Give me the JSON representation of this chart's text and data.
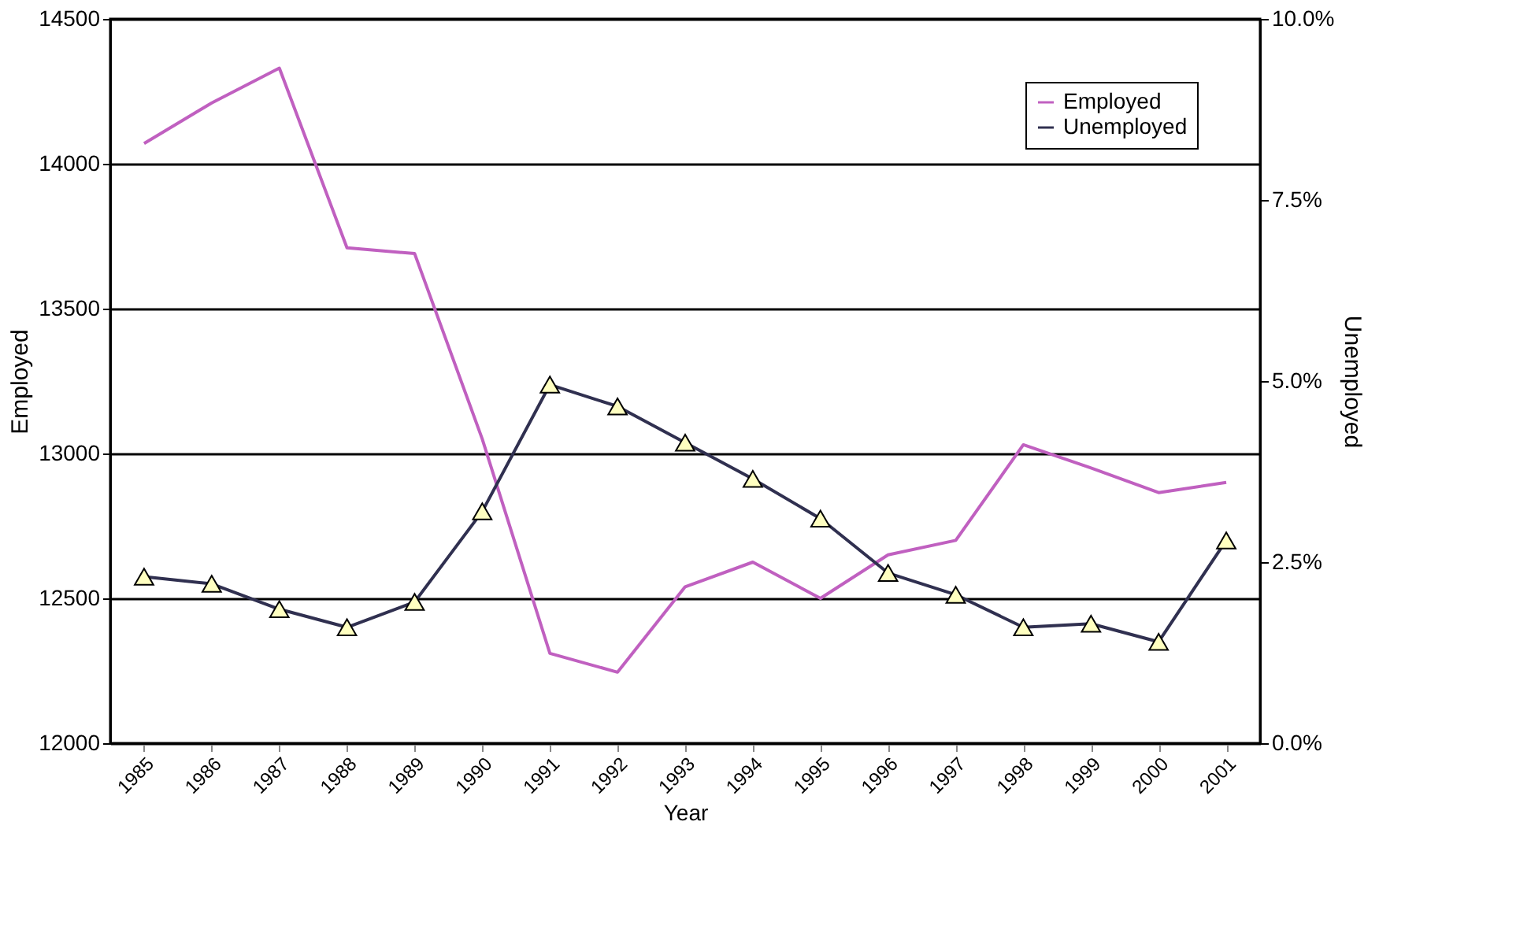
{
  "chart_data": {
    "type": "line",
    "xlabel": "Year",
    "ylabel": "Employed",
    "y2label": "Unemployed",
    "categories": [
      "1985",
      "1986",
      "1987",
      "1988",
      "1989",
      "1990",
      "1991",
      "1992",
      "1993",
      "1994",
      "1995",
      "1996",
      "1997",
      "1998",
      "1999",
      "2000",
      "2001"
    ],
    "series": [
      {
        "name": "Employed",
        "color": "#c060c0",
        "marker": "none",
        "values": [
          14070,
          14210,
          14330,
          13710,
          13690,
          13050,
          12310,
          12245,
          12540,
          12625,
          12500,
          12650,
          12700,
          13030,
          12950,
          12865,
          12900
        ]
      },
      {
        "name": "Unemployed",
        "color": "#303050",
        "marker": "triangle",
        "axis": "y2",
        "colors": [
          "#ffffc0",
          "#ffffc0",
          "#ffffc0",
          "#ffffc0",
          "#ffffc0",
          "#ffffc0",
          "#ffffc0",
          "#ffffc0",
          "#ffffc0",
          "#ffffc0",
          "#ffffc0",
          "#ffffc0",
          "#ffffc0",
          "#ffffc0",
          "#ffffc0",
          "#ffffc0",
          "#ffffc0"
        ],
        "values": [
          2.3,
          2.2,
          1.85,
          1.6,
          1.95,
          3.2,
          4.95,
          4.65,
          4.15,
          3.65,
          3.1,
          2.35,
          2.05,
          1.6,
          1.65,
          1.4,
          2.8
        ]
      }
    ],
    "ylim": [
      12000,
      14500
    ],
    "yticks": [
      12000,
      12500,
      13000,
      13500,
      14000,
      14500
    ],
    "y2lim": [
      0,
      10
    ],
    "y2ticks": [
      {
        "value": 0,
        "label": "0.0%"
      },
      {
        "value": 2.5,
        "label": "2.5%"
      },
      {
        "value": 5,
        "label": "5.0%"
      },
      {
        "value": 7.5,
        "label": "7.5%"
      },
      {
        "value": 10,
        "label": "10.0%"
      }
    ],
    "grid": "y",
    "legend": "top right",
    "line_style": "solid"
  }
}
